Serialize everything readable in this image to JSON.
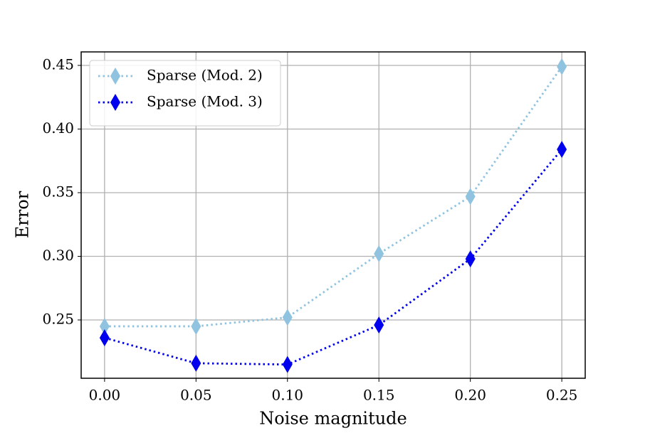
{
  "chart_data": {
    "type": "line",
    "xlabel": "Noise magnitude",
    "ylabel": "Error",
    "x": [
      0,
      0.05,
      0.1,
      0.15,
      0.2,
      0.25
    ],
    "series": [
      {
        "name": "Sparse (Mod. 2)",
        "color": "#8fc3e0",
        "values": [
          0.245,
          0.245,
          0.252,
          0.302,
          0.347,
          0.449
        ]
      },
      {
        "name": "Sparse (Mod. 3)",
        "color": "#0000ee",
        "values": [
          0.236,
          0.216,
          0.215,
          0.246,
          0.298,
          0.384
        ]
      }
    ],
    "xlim": [
      -0.0128,
      0.2628
    ],
    "ylim": [
      0.2042,
      0.4606
    ],
    "xticks": [
      {
        "value": 0,
        "label": "0.00"
      },
      {
        "value": 0.05,
        "label": "0.05"
      },
      {
        "value": 0.1,
        "label": "0.10"
      },
      {
        "value": 0.15,
        "label": "0.15"
      },
      {
        "value": 0.2,
        "label": "0.20"
      },
      {
        "value": 0.25,
        "label": "0.25"
      }
    ],
    "yticks": [
      0.25,
      {
        "value": 0.3,
        "label": "0.30"
      },
      0.35,
      {
        "value": 0.4,
        "label": "0.40"
      },
      0.45
    ],
    "grid": true,
    "legend": "upper left"
  }
}
